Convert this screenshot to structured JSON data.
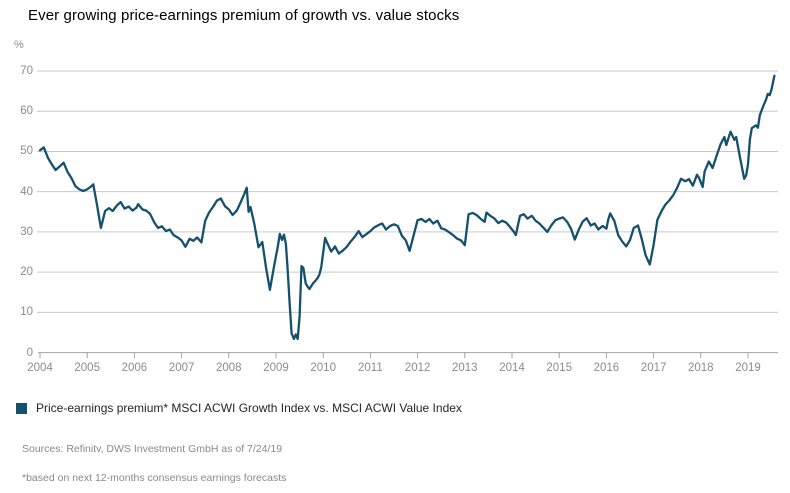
{
  "title": "Ever growing price-earnings premium of growth vs. value stocks",
  "legend": {
    "swatch_color": "#15506d",
    "label": "Price-earnings premium* MSCI ACWI Growth Index vs. MSCI ACWI Value Index"
  },
  "sources_line": "Sources: Refinitv, DWS Investment GmbH as of 7/24/19",
  "footnote_line": "*based on next 12-months consensus earnings forecasts",
  "colors": {
    "line": "#15506d",
    "grid": "#c9c9c9",
    "axis": "#a3a3a3",
    "tick_label": "#8c8c8c",
    "title_text": "#000000",
    "legend_text": "#262626",
    "source_text": "#8a8a8a"
  },
  "chart_data": {
    "type": "line",
    "title": "Ever growing price-earnings premium of growth vs. value stocks",
    "unit_label": "%",
    "xlabel": "",
    "ylabel": "%",
    "x_tick_labels": [
      "2004",
      "2005",
      "2006",
      "2007",
      "2008",
      "2009",
      "2010",
      "2011",
      "2012",
      "2013",
      "2014",
      "2015",
      "2016",
      "2017",
      "2018",
      "2019"
    ],
    "y_ticks": [
      0,
      10,
      20,
      30,
      40,
      50,
      60,
      70
    ],
    "ylim": [
      0,
      70
    ],
    "xlim": [
      2004.0,
      2019.63
    ],
    "grid": "horizontal",
    "legend_position": "bottom-left",
    "series": [
      {
        "name": "Price-earnings premium* MSCI ACWI Growth Index vs. MSCI ACWI Value Index",
        "points": [
          [
            2004.0,
            50.3
          ],
          [
            2004.08,
            51.0
          ],
          [
            2004.17,
            48.4
          ],
          [
            2004.25,
            46.8
          ],
          [
            2004.33,
            45.4
          ],
          [
            2004.42,
            46.3
          ],
          [
            2004.5,
            47.2
          ],
          [
            2004.58,
            45.0
          ],
          [
            2004.67,
            43.3
          ],
          [
            2004.75,
            41.4
          ],
          [
            2004.83,
            40.6
          ],
          [
            2004.92,
            40.2
          ],
          [
            2005.0,
            40.6
          ],
          [
            2005.08,
            41.3
          ],
          [
            2005.13,
            41.8
          ],
          [
            2005.21,
            36.6
          ],
          [
            2005.29,
            31.0
          ],
          [
            2005.38,
            35.2
          ],
          [
            2005.46,
            35.9
          ],
          [
            2005.54,
            35.2
          ],
          [
            2005.63,
            36.6
          ],
          [
            2005.71,
            37.4
          ],
          [
            2005.79,
            35.8
          ],
          [
            2005.88,
            36.3
          ],
          [
            2005.96,
            35.3
          ],
          [
            2006.04,
            36.0
          ],
          [
            2006.08,
            36.9
          ],
          [
            2006.17,
            35.6
          ],
          [
            2006.25,
            35.3
          ],
          [
            2006.33,
            34.5
          ],
          [
            2006.42,
            32.4
          ],
          [
            2006.5,
            31.0
          ],
          [
            2006.58,
            31.4
          ],
          [
            2006.67,
            30.2
          ],
          [
            2006.75,
            30.6
          ],
          [
            2006.83,
            29.2
          ],
          [
            2006.92,
            28.6
          ],
          [
            2007.0,
            27.9
          ],
          [
            2007.08,
            26.3
          ],
          [
            2007.17,
            28.3
          ],
          [
            2007.25,
            27.8
          ],
          [
            2007.33,
            28.6
          ],
          [
            2007.42,
            27.4
          ],
          [
            2007.5,
            32.8
          ],
          [
            2007.58,
            34.8
          ],
          [
            2007.67,
            36.3
          ],
          [
            2007.75,
            37.8
          ],
          [
            2007.83,
            38.3
          ],
          [
            2007.92,
            36.4
          ],
          [
            2008.0,
            35.6
          ],
          [
            2008.08,
            34.2
          ],
          [
            2008.17,
            35.3
          ],
          [
            2008.25,
            37.3
          ],
          [
            2008.33,
            39.5
          ],
          [
            2008.38,
            41.0
          ],
          [
            2008.42,
            35.0
          ],
          [
            2008.46,
            36.2
          ],
          [
            2008.54,
            32.0
          ],
          [
            2008.63,
            26.2
          ],
          [
            2008.71,
            27.5
          ],
          [
            2008.79,
            21.0
          ],
          [
            2008.87,
            15.6
          ],
          [
            2008.96,
            21.5
          ],
          [
            2009.04,
            26.5
          ],
          [
            2009.08,
            29.5
          ],
          [
            2009.13,
            28.0
          ],
          [
            2009.17,
            29.3
          ],
          [
            2009.21,
            27.0
          ],
          [
            2009.25,
            20.0
          ],
          [
            2009.29,
            12.0
          ],
          [
            2009.33,
            4.8
          ],
          [
            2009.38,
            3.4
          ],
          [
            2009.42,
            4.5
          ],
          [
            2009.46,
            3.4
          ],
          [
            2009.5,
            9.0
          ],
          [
            2009.54,
            21.5
          ],
          [
            2009.58,
            21.0
          ],
          [
            2009.63,
            17.2
          ],
          [
            2009.67,
            16.4
          ],
          [
            2009.71,
            15.8
          ],
          [
            2009.75,
            16.6
          ],
          [
            2009.79,
            17.3
          ],
          [
            2009.83,
            17.8
          ],
          [
            2009.88,
            18.5
          ],
          [
            2009.92,
            19.4
          ],
          [
            2009.96,
            21.3
          ],
          [
            2010.04,
            28.5
          ],
          [
            2010.08,
            27.4
          ],
          [
            2010.17,
            25.1
          ],
          [
            2010.25,
            26.4
          ],
          [
            2010.33,
            24.6
          ],
          [
            2010.42,
            25.4
          ],
          [
            2010.5,
            26.3
          ],
          [
            2010.58,
            27.6
          ],
          [
            2010.67,
            28.8
          ],
          [
            2010.75,
            30.2
          ],
          [
            2010.83,
            28.7
          ],
          [
            2010.92,
            29.5
          ],
          [
            2011.0,
            30.2
          ],
          [
            2011.08,
            31.1
          ],
          [
            2011.17,
            31.7
          ],
          [
            2011.25,
            32.1
          ],
          [
            2011.33,
            30.6
          ],
          [
            2011.42,
            31.5
          ],
          [
            2011.5,
            31.9
          ],
          [
            2011.58,
            31.5
          ],
          [
            2011.67,
            29.0
          ],
          [
            2011.75,
            27.9
          ],
          [
            2011.83,
            25.3
          ],
          [
            2011.92,
            29.3
          ],
          [
            2012.0,
            32.9
          ],
          [
            2012.08,
            33.2
          ],
          [
            2012.17,
            32.5
          ],
          [
            2012.25,
            33.2
          ],
          [
            2012.33,
            32.1
          ],
          [
            2012.42,
            32.8
          ],
          [
            2012.5,
            30.9
          ],
          [
            2012.58,
            30.6
          ],
          [
            2012.67,
            29.9
          ],
          [
            2012.75,
            29.2
          ],
          [
            2012.83,
            28.4
          ],
          [
            2012.92,
            27.9
          ],
          [
            2013.0,
            26.7
          ],
          [
            2013.08,
            34.4
          ],
          [
            2013.17,
            34.7
          ],
          [
            2013.25,
            34.2
          ],
          [
            2013.33,
            33.3
          ],
          [
            2013.42,
            32.5
          ],
          [
            2013.46,
            34.8
          ],
          [
            2013.54,
            34.0
          ],
          [
            2013.63,
            33.3
          ],
          [
            2013.71,
            32.2
          ],
          [
            2013.79,
            32.8
          ],
          [
            2013.88,
            32.3
          ],
          [
            2013.96,
            31.2
          ],
          [
            2014.04,
            30.0
          ],
          [
            2014.08,
            29.2
          ],
          [
            2014.17,
            34.0
          ],
          [
            2014.25,
            34.4
          ],
          [
            2014.33,
            33.3
          ],
          [
            2014.42,
            34.0
          ],
          [
            2014.5,
            32.8
          ],
          [
            2014.58,
            32.1
          ],
          [
            2014.67,
            31.0
          ],
          [
            2014.75,
            30.0
          ],
          [
            2014.83,
            31.6
          ],
          [
            2014.92,
            32.9
          ],
          [
            2015.0,
            33.3
          ],
          [
            2015.08,
            33.6
          ],
          [
            2015.17,
            32.5
          ],
          [
            2015.25,
            30.8
          ],
          [
            2015.33,
            28.1
          ],
          [
            2015.42,
            30.7
          ],
          [
            2015.5,
            32.6
          ],
          [
            2015.58,
            33.4
          ],
          [
            2015.67,
            31.6
          ],
          [
            2015.75,
            32.1
          ],
          [
            2015.83,
            30.6
          ],
          [
            2015.92,
            31.5
          ],
          [
            2016.0,
            30.8
          ],
          [
            2016.04,
            33.1
          ],
          [
            2016.08,
            34.6
          ],
          [
            2016.17,
            32.7
          ],
          [
            2016.25,
            29.2
          ],
          [
            2016.33,
            27.7
          ],
          [
            2016.42,
            26.4
          ],
          [
            2016.5,
            28.0
          ],
          [
            2016.58,
            31.0
          ],
          [
            2016.67,
            31.6
          ],
          [
            2016.75,
            28.2
          ],
          [
            2016.83,
            24.2
          ],
          [
            2016.92,
            21.9
          ],
          [
            2017.0,
            26.8
          ],
          [
            2017.08,
            33.0
          ],
          [
            2017.17,
            35.2
          ],
          [
            2017.25,
            36.8
          ],
          [
            2017.33,
            37.8
          ],
          [
            2017.42,
            39.2
          ],
          [
            2017.5,
            41.0
          ],
          [
            2017.58,
            43.2
          ],
          [
            2017.67,
            42.6
          ],
          [
            2017.75,
            43.1
          ],
          [
            2017.83,
            41.5
          ],
          [
            2017.92,
            44.2
          ],
          [
            2017.96,
            43.5
          ],
          [
            2018.04,
            41.2
          ],
          [
            2018.08,
            45.0
          ],
          [
            2018.17,
            47.5
          ],
          [
            2018.25,
            45.9
          ],
          [
            2018.33,
            48.8
          ],
          [
            2018.42,
            51.8
          ],
          [
            2018.5,
            53.6
          ],
          [
            2018.54,
            51.6
          ],
          [
            2018.63,
            54.9
          ],
          [
            2018.71,
            52.9
          ],
          [
            2018.75,
            53.6
          ],
          [
            2018.83,
            48.5
          ],
          [
            2018.92,
            43.2
          ],
          [
            2018.96,
            44.0
          ],
          [
            2019.0,
            46.8
          ],
          [
            2019.04,
            53.0
          ],
          [
            2019.08,
            55.8
          ],
          [
            2019.17,
            56.5
          ],
          [
            2019.21,
            55.9
          ],
          [
            2019.25,
            59.0
          ],
          [
            2019.33,
            61.5
          ],
          [
            2019.38,
            62.8
          ],
          [
            2019.42,
            64.3
          ],
          [
            2019.46,
            64.0
          ],
          [
            2019.5,
            65.5
          ],
          [
            2019.54,
            67.8
          ],
          [
            2019.56,
            68.8
          ]
        ]
      }
    ]
  }
}
